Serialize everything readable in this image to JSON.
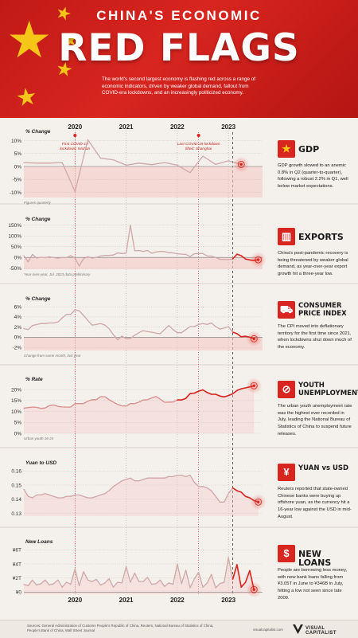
{
  "header": {
    "kicker": "CHINA'S ECONOMIC",
    "title": "RED FLAGS",
    "subtitle": "The world's second largest economy is flashing red across a range of economic indicators, driven by weaker global demand, fallout from COVID-era lockdowns, and an increasingly politicized economy."
  },
  "years": [
    "2020",
    "2021",
    "2022",
    "2023"
  ],
  "sections": [
    {
      "heading": "GDP",
      "icon": "china-flag-icon",
      "desc": "GDP growth slowed to an anemic 0.8% in Q2 (quarter-to-quarter), following a robust 2.2% in Q1, well below market expectations."
    },
    {
      "heading": "EXPORTS",
      "icon": "container-icon",
      "desc": "China's post-pandemic recovery is being threatened by weaker global demand, as year-over-year export growth hit a three-year low."
    },
    {
      "heading": "CONSUMER PRICE INDEX",
      "icon": "shopping-cart-icon",
      "desc": "The CPI moved into deflationary territory for the first time since 2021, when lockdowns shut down much of the economy."
    },
    {
      "heading": "YOUTH UNEMPLOYMENT",
      "icon": "prohibited-icon",
      "desc": "The urban youth unemployment rate was the highest ever recorded in July, leading the National Bureau of Statistics of China to suspend future releases."
    },
    {
      "heading": "YUAN vs USD",
      "icon": "yuan-dollar-icon",
      "desc": "Reuters reported that state-owned Chinese banks were buying up offshore yuan, as the currency hit a 16-year low against the USD in mid-August."
    },
    {
      "heading": "NEW LOANS",
      "icon": "hand-coins-icon",
      "desc": "People are borrowing less money, with new bank loans falling from ¥3.05T in June to ¥346B in July, hitting a low not seen since late 2009."
    }
  ],
  "annotations": {
    "covid_start": "First COVID-19 lockdown: Wuhan",
    "covid_end": "Last COVID-19 lockdown lifted: Shanghai"
  },
  "footer": {
    "sources": "Sources: General Administration of Customs People's Republic of China, Reuters, National Bureau of Statistics of China, People's Bank of China, Wall Street Journal",
    "link": "visualcapitalist.com",
    "brand_line1": "VISUAL",
    "brand_line2": "CAPITALIST"
  },
  "colors": {
    "accent": "#d8251f",
    "line": "#c9a5a5",
    "dark": "#222222"
  },
  "chart_data": [
    {
      "type": "line",
      "name": "GDP",
      "ylabel": "% Change",
      "note": "Figures quarterly",
      "yticks": [
        "10%",
        "5%",
        "0%",
        "-5%",
        "-10%"
      ],
      "ytick_values": [
        10,
        5,
        0,
        -5,
        -10
      ],
      "ylim": [
        -12,
        12
      ],
      "x_start": "2019-01",
      "x_step_months": 3,
      "values": [
        1.5,
        1.3,
        1.3,
        1.5,
        -9.7,
        10.3,
        3.2,
        2.6,
        0.5,
        1.3,
        0.7,
        1.5,
        0.5,
        -2.4,
        4.0,
        0.8,
        2.2,
        0.8
      ]
    },
    {
      "type": "line",
      "name": "Exports",
      "ylabel": "% Change",
      "note": "Year-over-year, Jul. 2023 data preliminary",
      "yticks": [
        "150%",
        "100%",
        "50%",
        "0%",
        "-50%"
      ],
      "ytick_values": [
        150,
        100,
        50,
        0,
        -50
      ],
      "ylim": [
        -55,
        160
      ],
      "x_start": "2019-01",
      "x_step_months": 1,
      "values": [
        8,
        -20,
        14,
        -3,
        1,
        -1,
        3,
        -1,
        -3,
        -1,
        -1,
        8,
        -3,
        -40,
        -6,
        3,
        -3,
        0,
        7,
        9,
        9,
        11,
        21,
        18,
        20,
        150,
        31,
        32,
        28,
        32,
        19,
        25,
        28,
        27,
        22,
        21,
        17,
        15,
        14,
        4,
        17,
        18,
        18,
        7,
        6,
        -0.3,
        -9,
        -10,
        -10,
        -7,
        15,
        8,
        -7,
        -12,
        -14,
        -11
      ]
    },
    {
      "type": "line",
      "name": "CPI",
      "ylabel": "% Change",
      "note": "Change from same month, last year",
      "yticks": [
        "6%",
        "4%",
        "2%",
        "0%",
        "-2%"
      ],
      "ytick_values": [
        6,
        4,
        2,
        0,
        -2
      ],
      "ylim": [
        -2.6,
        6.8
      ],
      "x_start": "2019-01",
      "x_step_months": 1,
      "values": [
        1.7,
        1.5,
        2.3,
        2.5,
        2.7,
        2.7,
        2.8,
        2.8,
        3.0,
        3.8,
        4.5,
        4.5,
        5.4,
        5.2,
        4.3,
        3.3,
        2.4,
        2.5,
        2.7,
        2.4,
        1.7,
        0.5,
        -0.5,
        0.2,
        -0.3,
        -0.2,
        0.4,
        0.9,
        1.3,
        1.1,
        1.0,
        0.8,
        0.7,
        1.5,
        2.3,
        1.5,
        0.9,
        0.9,
        1.5,
        2.1,
        2.1,
        2.5,
        2.7,
        2.5,
        2.8,
        2.1,
        1.6,
        1.8,
        2.1,
        1.0,
        0.7,
        0.1,
        0.2,
        0.0,
        -0.3
      ]
    },
    {
      "type": "line",
      "name": "Youth Unemployment",
      "ylabel": "% Rate",
      "note": "Urban youth 16-24",
      "yticks": [
        "20%",
        "15%",
        "10%",
        "5%",
        "0%"
      ],
      "ytick_values": [
        20,
        15,
        10,
        5,
        0
      ],
      "ylim": [
        0,
        23
      ],
      "x_start": "2019-01",
      "x_step_months": 1,
      "values": [
        11.5,
        11.8,
        12.0,
        11.9,
        11.4,
        11.6,
        12.7,
        13.0,
        12.3,
        12.1,
        12.0,
        12.0,
        13.6,
        13.6,
        13.6,
        14.7,
        15.4,
        15.4,
        16.8,
        16.8,
        15.4,
        14.3,
        13.2,
        12.6,
        12.5,
        13.6,
        13.6,
        14.3,
        15.3,
        15.4,
        16.2,
        16.9,
        15.7,
        14.2,
        14.3,
        14.3,
        15.3,
        15.3,
        16.0,
        18.2,
        18.4,
        19.3,
        19.9,
        18.7,
        17.9,
        17.9,
        17.1,
        16.7,
        17.3,
        18.1,
        19.6,
        20.4,
        20.8,
        21.3,
        21.8
      ]
    },
    {
      "type": "line",
      "name": "Yuan to USD",
      "ylabel": "Yuan to USD",
      "note": "",
      "yticks": [
        "0.16",
        "0.15",
        "0.14",
        "0.13"
      ],
      "ytick_values": [
        0.16,
        0.15,
        0.14,
        0.13
      ],
      "ylim": [
        0.128,
        0.163
      ],
      "x_start": "2019-01",
      "x_step_months": 1,
      "values": [
        0.147,
        0.142,
        0.141,
        0.143,
        0.143,
        0.144,
        0.143,
        0.142,
        0.141,
        0.141,
        0.142,
        0.142,
        0.143,
        0.143,
        0.142,
        0.141,
        0.141,
        0.142,
        0.143,
        0.144,
        0.146,
        0.149,
        0.151,
        0.153,
        0.154,
        0.155,
        0.153,
        0.153,
        0.154,
        0.155,
        0.155,
        0.155,
        0.155,
        0.155,
        0.156,
        0.156,
        0.157,
        0.157,
        0.156,
        0.157,
        0.152,
        0.149,
        0.149,
        0.148,
        0.146,
        0.142,
        0.138,
        0.138,
        0.144,
        0.148,
        0.146,
        0.145,
        0.142,
        0.141,
        0.139,
        0.138
      ]
    },
    {
      "type": "line",
      "name": "New Loans",
      "ylabel": "New Loans",
      "note": "",
      "yticks": [
        "¥6T",
        "¥4T",
        "¥2T",
        "¥0"
      ],
      "ytick_values": [
        6,
        4,
        2,
        0
      ],
      "ylim": [
        -0.3,
        6.6
      ],
      "x_start": "2019-01",
      "x_step_months": 1,
      "values": [
        1.1,
        0.9,
        1.7,
        1.0,
        1.2,
        1.7,
        1.0,
        1.2,
        1.7,
        0.7,
        1.4,
        1.1,
        3.3,
        0.9,
        2.9,
        1.7,
        1.5,
        1.8,
        1.0,
        1.3,
        1.9,
        0.7,
        1.4,
        1.3,
        3.6,
        1.4,
        2.7,
        1.5,
        1.5,
        2.1,
        1.1,
        1.2,
        1.7,
        0.8,
        1.3,
        1.1,
        4.0,
        1.2,
        3.1,
        0.6,
        1.9,
        2.8,
        0.7,
        1.3,
        2.5,
        0.6,
        1.2,
        1.4,
        4.9,
        1.8,
        3.9,
        0.7,
        1.4,
        3.05,
        0.35
      ]
    }
  ]
}
